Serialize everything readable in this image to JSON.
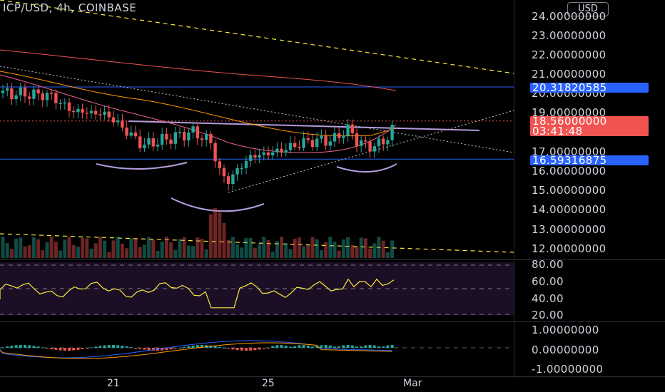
{
  "header": {
    "symbol": "ICP/USD",
    "interval": "4h",
    "exchange": "COINBASE",
    "currency_button": "USD"
  },
  "price_axis": {
    "labels": [
      "24.00000000",
      "23.00000000",
      "22.00000000",
      "21.00000000",
      "20.00000000",
      "19.00000000",
      "17.00000000",
      "16.00000000",
      "15.00000000",
      "14.00000000",
      "13.00000000",
      "12.00000000"
    ],
    "resistance_tag": "20.31820585",
    "current_price_tag": "18.56000000",
    "countdown": "03:41:48",
    "support_tag": "16.59316875"
  },
  "rsi_axis": {
    "labels": [
      "80.00",
      "60.00",
      "40.00",
      "20.00"
    ]
  },
  "macd_axis": {
    "labels": [
      "1.00000000",
      "0.00000000",
      "-1.00000000"
    ]
  },
  "time_axis": {
    "labels": [
      "21",
      "25",
      "Mar"
    ]
  },
  "colors": {
    "up": "#26a69a",
    "down": "#ef5350",
    "level_line": "#2962ff",
    "rsi": "#ffeb3b",
    "macd": "#2962ff",
    "signal": "#ff9800",
    "neckline": "#b39ddb",
    "trend": "#ffeb3b"
  },
  "chart_data": {
    "type": "candlestick",
    "levels": {
      "resistance": 20.31820585,
      "support": 16.59316875,
      "last_price": 18.56
    },
    "rsi_bands": [
      80,
      60,
      40,
      20
    ]
  }
}
